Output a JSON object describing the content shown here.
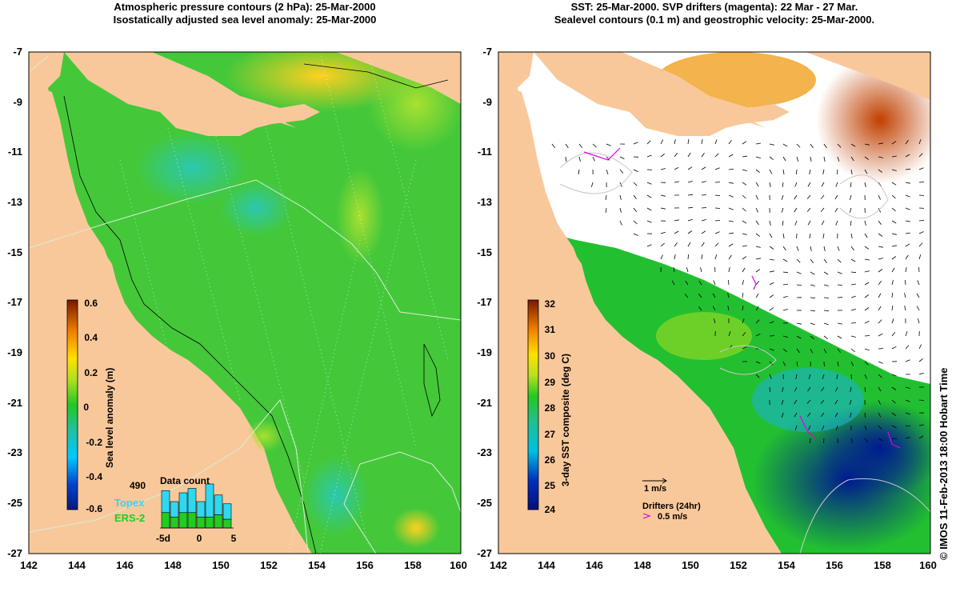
{
  "left_panel": {
    "title_line1": "Atmospheric pressure contours (2 hPa): 25-Mar-2000",
    "title_line2": "Isostatically adjusted sea level anomaly: 25-Mar-2000",
    "colorbar": {
      "label": "Sea level anomaly (m)",
      "ticks": [
        "0.6",
        "0.4",
        "0.2",
        "0",
        "-0.2",
        "-0.4",
        "-0.6"
      ]
    },
    "data_count": {
      "title": "Data count",
      "max_label": "490",
      "series": [
        {
          "name": "Topex",
          "color": "#2fd8f0",
          "values": [
            0.5,
            0.35,
            0.45,
            0.55,
            0.35,
            0.75,
            0.45,
            0.35
          ]
        },
        {
          "name": "ERS-2",
          "color": "#22cc22",
          "values": [
            0.35,
            0.25,
            0.35,
            0.35,
            0.25,
            0.25,
            0.3,
            0.2
          ]
        }
      ],
      "xticks": [
        "-5d",
        "0",
        "5"
      ]
    }
  },
  "right_panel": {
    "title_line1": "SST: 25-Mar-2000. SVP drifters (magenta): 22 Mar - 27 Mar.",
    "title_line2": "Sealevel contours (0.1 m) and geostrophic velocity: 25-Mar-2000.",
    "colorbar": {
      "label": "3-day SST composite (deg C)",
      "ticks": [
        "32",
        "31",
        "30",
        "29",
        "28",
        "27",
        "26",
        "25",
        "24"
      ]
    },
    "legend": {
      "velocity_label": "1 m/s",
      "drifter_title": "Drifters (24hr)",
      "drifter_label": "0.5 m/s"
    }
  },
  "axes": {
    "x_ticks": [
      "142",
      "144",
      "146",
      "148",
      "150",
      "152",
      "154",
      "156",
      "158",
      "160"
    ],
    "y_ticks": [
      "-7",
      "-9",
      "-11",
      "-13",
      "-15",
      "-17",
      "-19",
      "-21",
      "-23",
      "-25",
      "-27"
    ]
  },
  "credit": "© IMOS 11-Feb-2013 18:00 Hobart Time",
  "colors": {
    "land": "#f9c89a",
    "sea_green": "#44c83a",
    "sst_white": "#ffffff",
    "drifter": "#e000e0"
  }
}
